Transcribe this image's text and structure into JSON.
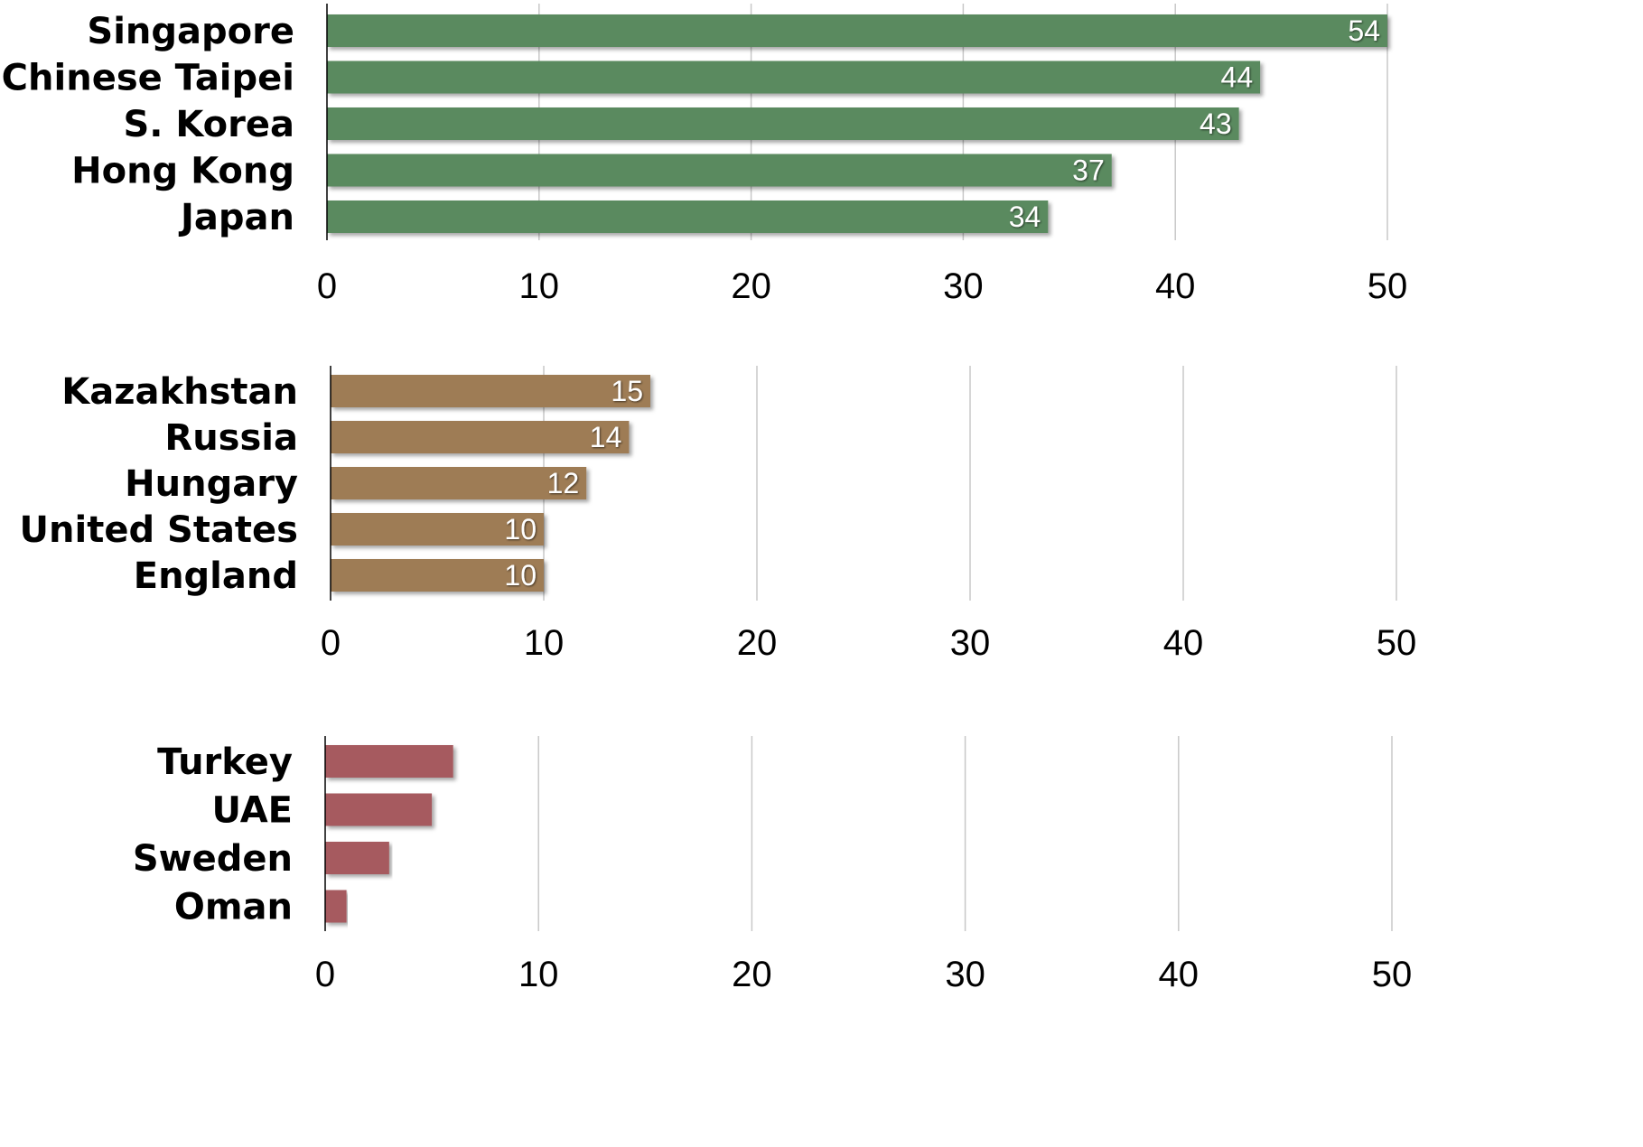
{
  "chart_data": [
    {
      "type": "bar",
      "orientation": "horizontal",
      "categories": [
        "Singapore",
        "Chinese Taipei",
        "S. Korea",
        "Hong Kong",
        "Japan"
      ],
      "values": [
        54,
        44,
        43,
        37,
        34
      ],
      "data_labels": [
        "54",
        "44",
        "43",
        "37",
        "34"
      ],
      "xlim": [
        0,
        50
      ],
      "xticks": [
        "0",
        "10",
        "20",
        "30",
        "40",
        "50"
      ],
      "grid": "vertical",
      "bar_color": "#5a8a5e",
      "title": "",
      "xlabel": "",
      "ylabel": ""
    },
    {
      "type": "bar",
      "orientation": "horizontal",
      "categories": [
        "Kazakhstan",
        "Russia",
        "Hungary",
        "United States",
        "England"
      ],
      "values": [
        15,
        14,
        12,
        10,
        10
      ],
      "data_labels": [
        "15",
        "14",
        "12",
        "10",
        "10"
      ],
      "xlim": [
        0,
        50
      ],
      "xticks": [
        "0",
        "10",
        "20",
        "30",
        "40",
        "50"
      ],
      "grid": "vertical",
      "bar_color": "#9e7c55",
      "title": "",
      "xlabel": "",
      "ylabel": ""
    },
    {
      "type": "bar",
      "orientation": "horizontal",
      "categories": [
        "Turkey",
        "UAE",
        "Sweden",
        "Oman"
      ],
      "values": [
        6,
        5,
        3,
        1
      ],
      "data_labels": [],
      "xlim": [
        0,
        50
      ],
      "xticks": [
        "0",
        "10",
        "20",
        "30",
        "40",
        "50"
      ],
      "grid": "vertical",
      "bar_color": "#a65a5e",
      "title": "",
      "xlabel": "",
      "ylabel": ""
    }
  ]
}
